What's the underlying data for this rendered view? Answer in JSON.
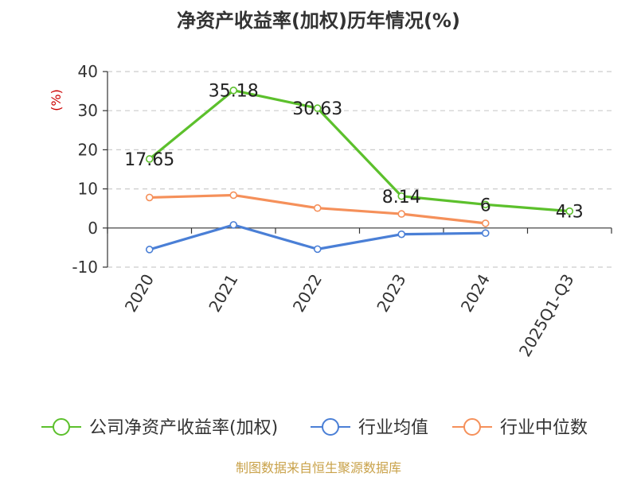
{
  "chart_data": {
    "type": "line",
    "title": "净资产收益率(加权)历年情况(%)",
    "ylabel": "(%)",
    "categories": [
      "2020",
      "2021",
      "2022",
      "2023",
      "2024",
      "2025Q1-Q3"
    ],
    "ylim": [
      -10,
      40
    ],
    "yticks": [
      40,
      30,
      20,
      10,
      0,
      -10
    ],
    "grid": true,
    "legend_position": "bottom",
    "series": [
      {
        "name": "公司净资产收益率(加权)",
        "color": "#5cc02c",
        "values": [
          17.65,
          35.18,
          30.63,
          8.14,
          6,
          4.3
        ],
        "labels": [
          "17.65",
          "35.18",
          "30.63",
          "8.14",
          "6",
          "4.3"
        ]
      },
      {
        "name": "行业均值",
        "color": "#4a7fd6",
        "values": [
          -5.5,
          0.8,
          -5.4,
          -1.6,
          -1.3,
          null
        ]
      },
      {
        "name": "行业中位数",
        "color": "#f5905a",
        "values": [
          7.8,
          8.4,
          5.1,
          3.6,
          1.2,
          null
        ]
      }
    ]
  },
  "source": "制图数据来自恒生聚源数据库"
}
